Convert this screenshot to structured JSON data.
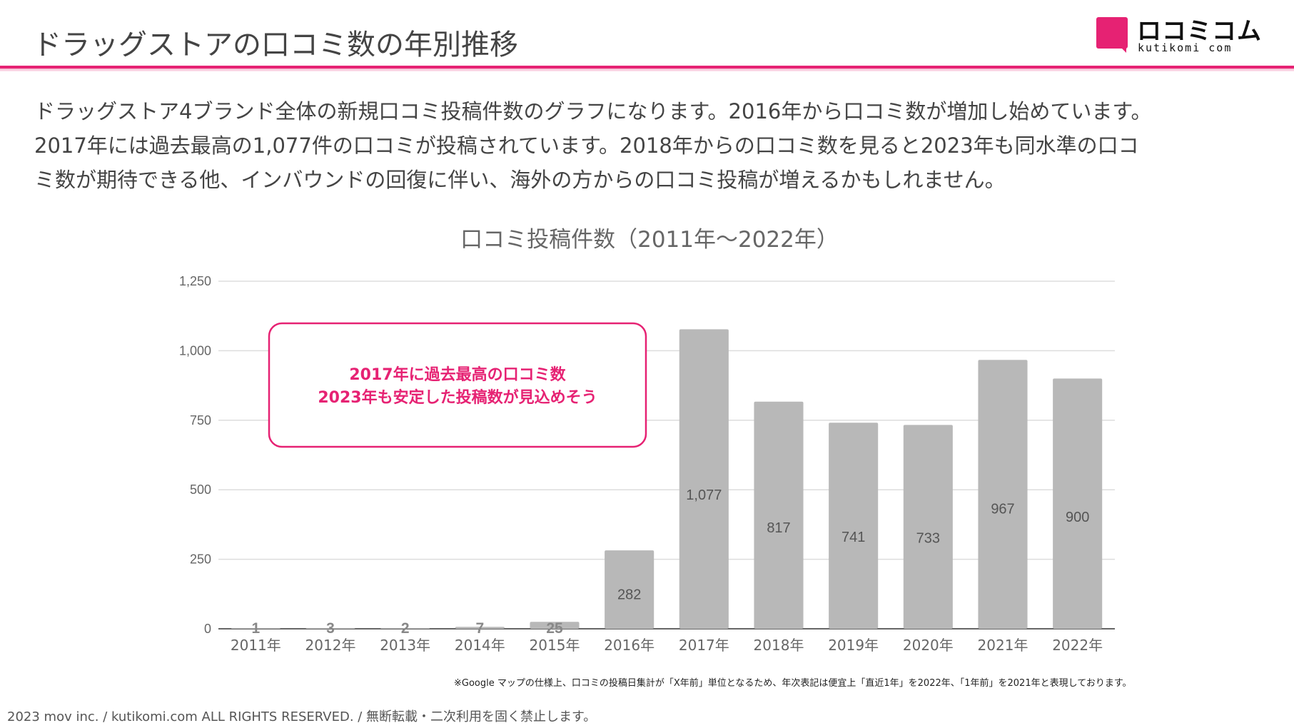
{
  "slide": {
    "title": "ドラッグストアの口コミ数の年別推移",
    "description_lines": [
      "ドラッグストア4ブランド全体の新規口コミ投稿件数のグラフになります。2016年から口コミ数が増加し始めています。",
      "2017年には過去最高の1,077件の口コミが投稿されています。2018年からの口コミ数を見ると2023年も同水準の口コ",
      "ミ数が期待できる他、インバウンドの回復に伴い、海外の方からの口コミ投稿が増えるかもしれません。"
    ],
    "footnote": "※Google マップの仕様上、口コミの投稿日集計が「X年前」単位となるため、年次表記は便宜上「直近1年」を2022年、「1年前」を2021年と表現しております。",
    "copyright": "2023 mov inc. / kutikomi.com ALL RIGHTS RESERVED. / 無断転載・二次利用を固く禁止します。"
  },
  "logo": {
    "text_jp": "ロコミコム",
    "text_en": "kutikomi com",
    "icon": "speech-bubble-icon"
  },
  "colors": {
    "accent": "#e62273",
    "bar": "#b8b8b8",
    "grid": "#dddddd",
    "axis_text": "#666666",
    "bar_label": "#555555"
  },
  "chart_data": {
    "type": "bar",
    "title": "口コミ投稿件数（2011年～2022年）",
    "categories": [
      "2011年",
      "2012年",
      "2013年",
      "2014年",
      "2015年",
      "2016年",
      "2017年",
      "2018年",
      "2019年",
      "2020年",
      "2021年",
      "2022年"
    ],
    "values": [
      1,
      3,
      2,
      7,
      25,
      282,
      1077,
      817,
      741,
      733,
      967,
      900
    ],
    "data_labels": [
      "1",
      "3",
      "2",
      "7",
      "25",
      "282",
      "1,077",
      "817",
      "741",
      "733",
      "967",
      "900"
    ],
    "ylim": [
      0,
      1250
    ],
    "yticks": [
      0,
      250,
      500,
      750,
      1000,
      1250
    ],
    "ytick_labels": [
      "0",
      "250",
      "500",
      "750",
      "1,000",
      "1,250"
    ],
    "xlabel": "",
    "ylabel": "",
    "grid": true,
    "annotation": {
      "lines": [
        "2017年に過去最高の口コミ数",
        "2023年も安定した投稿数が見込めそう"
      ],
      "placement": "upper-left"
    }
  }
}
